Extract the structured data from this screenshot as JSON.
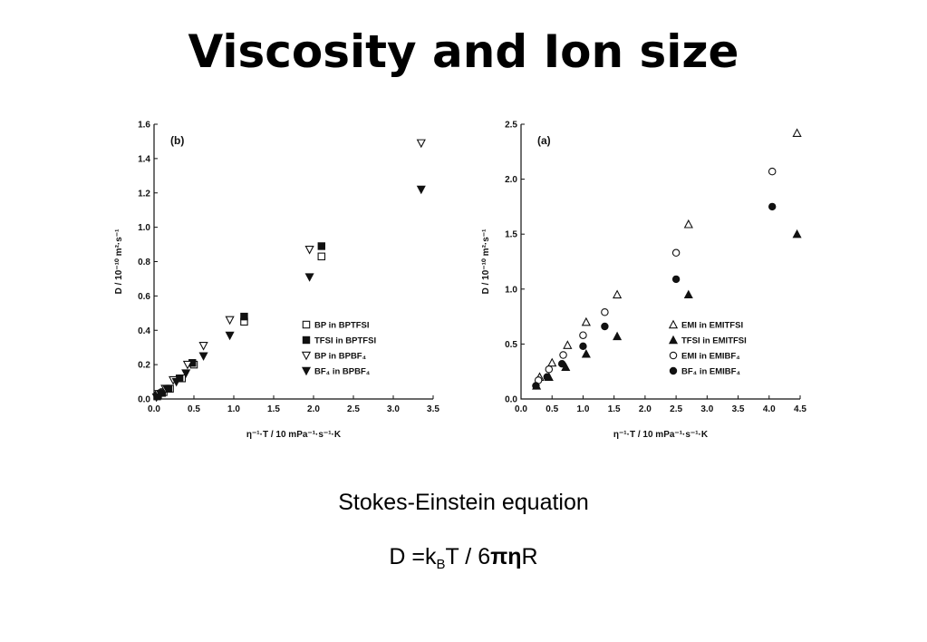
{
  "title": "Viscosity and Ion size",
  "equation": {
    "caption": "Stokes-Einstein equation",
    "lhs": "D =k",
    "sub": "B",
    "mid": "T / 6",
    "bold": "πη",
    "tail": "R"
  },
  "chart_data": [
    {
      "type": "scatter",
      "panel_label": "(b)",
      "xlabel": "η⁻¹·T / 10 mPa⁻¹·s⁻¹·K",
      "ylabel": "D / 10⁻¹⁰ m²·s⁻¹",
      "xlim": [
        0,
        3.5
      ],
      "ylim": [
        0,
        1.6
      ],
      "xticks": [
        "0.0",
        "0.5",
        "1.0",
        "1.5",
        "2.0",
        "2.5",
        "3.0",
        "3.5"
      ],
      "yticks": [
        "0.0",
        "0.2",
        "0.4",
        "0.6",
        "0.8",
        "1.0",
        "1.2",
        "1.4",
        "1.6"
      ],
      "grid": false,
      "legend_position": "bottom-right",
      "series": [
        {
          "name": "BP in BPTFSI",
          "marker": "square-open",
          "points": [
            [
              0.05,
              0.02
            ],
            [
              0.12,
              0.04
            ],
            [
              0.2,
              0.06
            ],
            [
              0.35,
              0.12
            ],
            [
              0.5,
              0.2
            ],
            [
              1.13,
              0.45
            ],
            [
              2.1,
              0.83
            ]
          ]
        },
        {
          "name": "TFSI in BPTFSI",
          "marker": "square-filled",
          "points": [
            [
              0.04,
              0.015
            ],
            [
              0.1,
              0.035
            ],
            [
              0.18,
              0.06
            ],
            [
              0.32,
              0.12
            ],
            [
              0.48,
              0.21
            ],
            [
              1.13,
              0.48
            ],
            [
              2.1,
              0.89
            ]
          ]
        },
        {
          "name": "BP in BPBF₄",
          "marker": "triangle-down-open",
          "points": [
            [
              0.06,
              0.03
            ],
            [
              0.14,
              0.06
            ],
            [
              0.24,
              0.11
            ],
            [
              0.42,
              0.2
            ],
            [
              0.62,
              0.31
            ],
            [
              0.95,
              0.46
            ],
            [
              1.95,
              0.87
            ],
            [
              3.35,
              1.49
            ]
          ]
        },
        {
          "name": "BF₄ in BPBF₄",
          "marker": "triangle-down-filled",
          "points": [
            [
              0.03,
              0.01
            ],
            [
              0.08,
              0.03
            ],
            [
              0.16,
              0.06
            ],
            [
              0.28,
              0.1
            ],
            [
              0.4,
              0.15
            ],
            [
              0.62,
              0.25
            ],
            [
              0.95,
              0.37
            ],
            [
              1.95,
              0.71
            ],
            [
              3.35,
              1.22
            ]
          ]
        }
      ]
    },
    {
      "type": "scatter",
      "panel_label": "(a)",
      "xlabel": "η⁻¹·T / 10 mPa⁻¹·s⁻¹·K",
      "ylabel": "D / 10⁻¹⁰ m²·s⁻¹",
      "xlim": [
        0,
        4.5
      ],
      "ylim": [
        0,
        2.5
      ],
      "xticks": [
        "0.0",
        "0.5",
        "1.0",
        "1.5",
        "2.0",
        "2.5",
        "3.0",
        "3.5",
        "4.0",
        "4.5"
      ],
      "yticks": [
        "0.0",
        "0.5",
        "1.0",
        "1.5",
        "2.0",
        "2.5"
      ],
      "grid": false,
      "legend_position": "bottom-right",
      "series": [
        {
          "name": "EMI in EMITFSI",
          "marker": "triangle-up-open",
          "points": [
            [
              0.3,
              0.2
            ],
            [
              0.5,
              0.33
            ],
            [
              0.75,
              0.49
            ],
            [
              1.05,
              0.7
            ],
            [
              1.55,
              0.95
            ],
            [
              2.7,
              1.59
            ],
            [
              4.45,
              2.42
            ]
          ]
        },
        {
          "name": "TFSI in EMITFSI",
          "marker": "triangle-up-filled",
          "points": [
            [
              0.25,
              0.12
            ],
            [
              0.45,
              0.2
            ],
            [
              0.72,
              0.29
            ],
            [
              1.05,
              0.41
            ],
            [
              1.55,
              0.57
            ],
            [
              2.7,
              0.95
            ],
            [
              4.45,
              1.5
            ]
          ]
        },
        {
          "name": "EMI in EMIBF₄",
          "marker": "circle-open",
          "points": [
            [
              0.28,
              0.17
            ],
            [
              0.45,
              0.27
            ],
            [
              0.68,
              0.4
            ],
            [
              1.0,
              0.58
            ],
            [
              1.35,
              0.79
            ],
            [
              2.5,
              1.33
            ],
            [
              4.05,
              2.07
            ]
          ]
        },
        {
          "name": "BF₄ in EMIBF₄",
          "marker": "circle-filled",
          "points": [
            [
              0.24,
              0.12
            ],
            [
              0.42,
              0.2
            ],
            [
              0.66,
              0.32
            ],
            [
              1.0,
              0.48
            ],
            [
              1.35,
              0.66
            ],
            [
              2.5,
              1.09
            ],
            [
              4.05,
              1.75
            ]
          ]
        }
      ]
    }
  ]
}
